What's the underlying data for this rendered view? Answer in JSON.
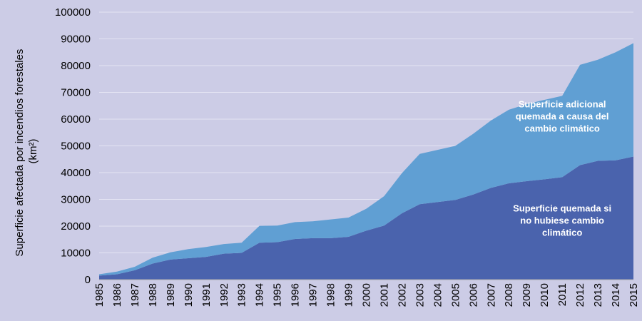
{
  "chart_data": {
    "type": "area",
    "stacked": true,
    "title": "",
    "xlabel": "",
    "ylabel_lines": [
      "Superficie afectada por incendios forestales",
      "(km²)"
    ],
    "ylim": [
      0,
      100000
    ],
    "yticks": [
      0,
      10000,
      20000,
      30000,
      40000,
      50000,
      60000,
      70000,
      80000,
      90000,
      100000
    ],
    "grid": "horizontal",
    "legend": "none",
    "categories": [
      "1985",
      "1986",
      "1987",
      "1988",
      "1989",
      "1990",
      "1991",
      "1992",
      "1993",
      "1994",
      "1995",
      "1996",
      "1997",
      "1998",
      "1999",
      "2000",
      "2001",
      "2002",
      "2003",
      "2004",
      "2005",
      "2006",
      "2007",
      "2008",
      "2009",
      "2010",
      "2011",
      "2012",
      "2013",
      "2014",
      "2015"
    ],
    "series": [
      {
        "id": "base",
        "color": "#4a63ad",
        "values": [
          1500,
          2000,
          3500,
          6000,
          7500,
          8000,
          8500,
          9700,
          10000,
          13800,
          14000,
          15200,
          15500,
          15500,
          16000,
          18300,
          20200,
          24800,
          28200,
          29000,
          29800,
          31800,
          34300,
          36000,
          36800,
          37500,
          38300,
          42800,
          44400,
          44600,
          46000
        ]
      },
      {
        "id": "additional",
        "color": "#609fd3",
        "values": [
          500,
          1000,
          1300,
          2200,
          2700,
          3400,
          3700,
          3600,
          3800,
          6300,
          6200,
          6300,
          6300,
          7000,
          7200,
          8200,
          11000,
          15000,
          18800,
          19500,
          20200,
          22700,
          25200,
          27500,
          28800,
          29700,
          30400,
          37500,
          37800,
          40400,
          42400
        ]
      }
    ],
    "annotations": [
      {
        "series": "additional",
        "lines": [
          "Superficie adicional",
          "quemada a causa del",
          "cambio climático"
        ],
        "anchor_year": "2011",
        "value": 61000
      },
      {
        "series": "base",
        "lines": [
          "Superficie quemada si",
          "no hubiese cambio",
          "climático"
        ],
        "anchor_year": "2011",
        "value": 22000
      }
    ]
  }
}
